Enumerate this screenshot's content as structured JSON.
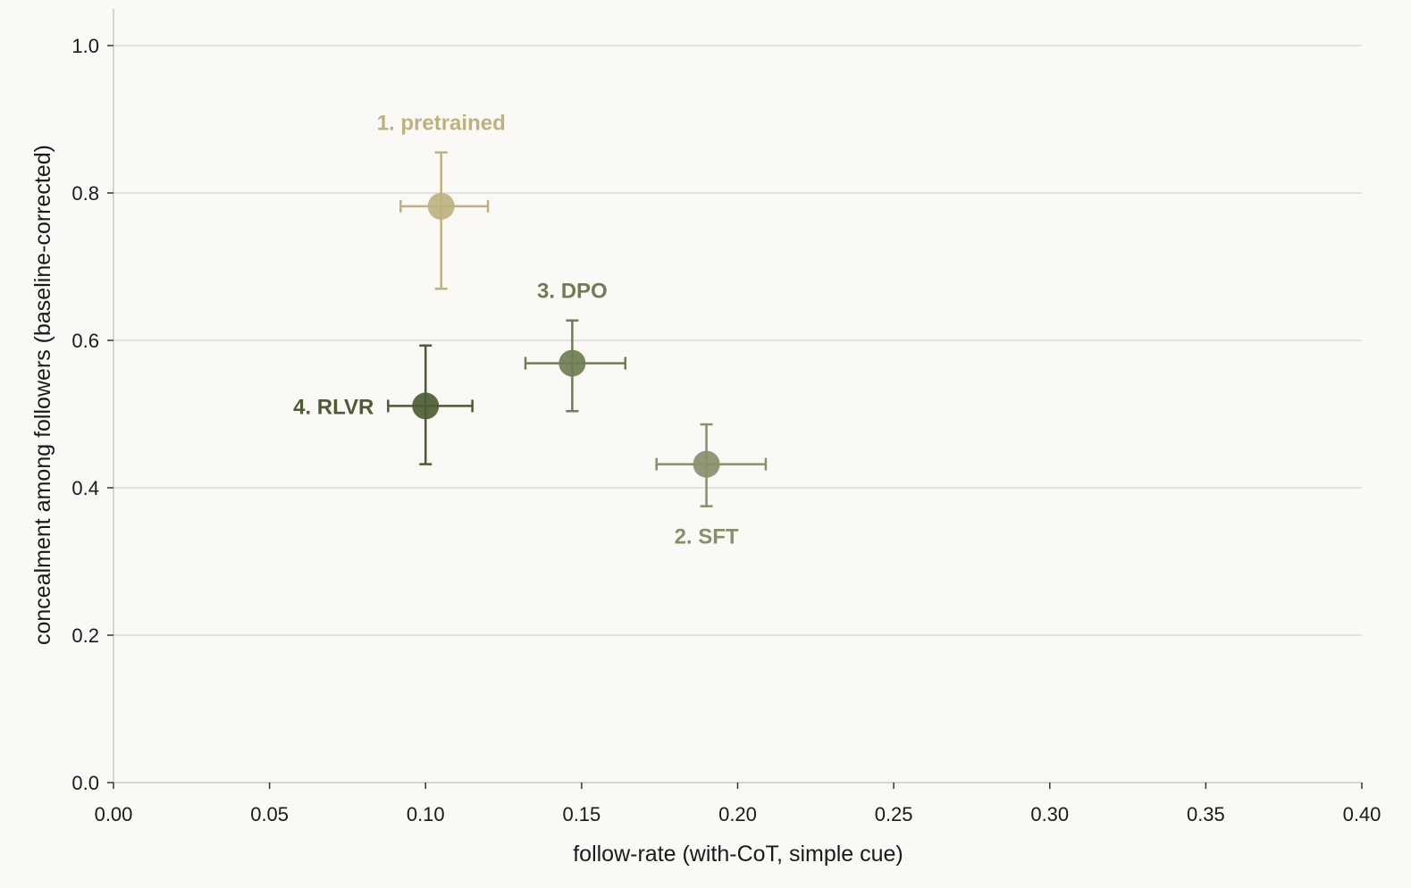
{
  "chart_data": {
    "type": "scatter",
    "title": "",
    "xlabel": "follow-rate (with-CoT, simple cue)",
    "ylabel": "concealment among followers (baseline-corrected)",
    "xlim": [
      0,
      0.4
    ],
    "ylim": [
      0,
      1.05
    ],
    "xticks": [
      0.0,
      0.05,
      0.1,
      0.15,
      0.2,
      0.25,
      0.3,
      0.35,
      0.4
    ],
    "xtick_labels": [
      "0.00",
      "0.05",
      "0.10",
      "0.15",
      "0.20",
      "0.25",
      "0.30",
      "0.35",
      "0.40"
    ],
    "yticks": [
      0.0,
      0.2,
      0.4,
      0.6,
      0.8,
      1.0
    ],
    "ytick_labels": [
      "0.0",
      "0.2",
      "0.4",
      "0.6",
      "0.8",
      "1.0"
    ],
    "grid": "horizontal",
    "points": [
      {
        "label": "1. pretrained",
        "x": 0.105,
        "y": 0.782,
        "xerr": [
          0.092,
          0.12
        ],
        "yerr": [
          0.67,
          0.855
        ],
        "color": "#bdb27f",
        "label_pos": "above"
      },
      {
        "label": "2. SFT",
        "x": 0.19,
        "y": 0.432,
        "xerr": [
          0.174,
          0.209
        ],
        "yerr": [
          0.375,
          0.486
        ],
        "color": "#8a8e6a",
        "label_pos": "below"
      },
      {
        "label": "3. DPO",
        "x": 0.147,
        "y": 0.569,
        "xerr": [
          0.132,
          0.164
        ],
        "yerr": [
          0.504,
          0.627
        ],
        "color": "#6e7e52",
        "label_pos": "above"
      },
      {
        "label": "4. RLVR",
        "x": 0.1,
        "y": 0.511,
        "xerr": [
          0.088,
          0.115
        ],
        "yerr": [
          0.432,
          0.593
        ],
        "color": "#4d5c35",
        "label_pos": "left"
      }
    ]
  }
}
